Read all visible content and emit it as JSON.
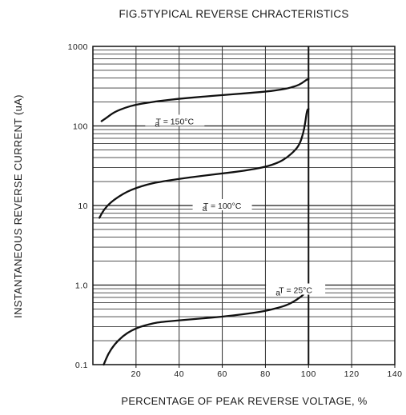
{
  "chart_data": {
    "type": "line",
    "title": "FIG.5TYPICAL REVERSE CHRACTERISTICS",
    "xlabel": "PERCENTAGE OF PEAK REVERSE VOLTAGE, %",
    "ylabel": "INSTANTANEOUS REVERSE CURRENT (uA)",
    "xlim": [
      0,
      140
    ],
    "ylim": [
      0.1,
      1000
    ],
    "yscale": "log",
    "grid": true,
    "x_ticks": [
      "20",
      "40",
      "60",
      "80",
      "100",
      "120",
      "140"
    ],
    "x_tick_values": [
      20,
      40,
      60,
      80,
      100,
      120,
      140
    ],
    "y_ticks": [
      "0.1",
      "1.0",
      "10",
      "100",
      "1000"
    ],
    "y_tick_values": [
      0.1,
      1,
      10,
      100,
      1000
    ],
    "series": [
      {
        "label": "Tₐ = 150°C",
        "label_text": "T  = 150°C",
        "label_sub": "a",
        "label_at": {
          "x": 38,
          "y": 115
        },
        "x": [
          4,
          6,
          10,
          15,
          20,
          25,
          30,
          40,
          50,
          60,
          70,
          80,
          85,
          90,
          94,
          97,
          99
        ],
        "y": [
          115,
          125,
          150,
          170,
          185,
          195,
          205,
          220,
          232,
          244,
          256,
          270,
          280,
          295,
          315,
          345,
          380
        ]
      },
      {
        "label": "Tₐ = 100°C",
        "label_text": "T  = 100°C",
        "label_sub": "a",
        "label_at": {
          "x": 60,
          "y": 10
        },
        "x": [
          3,
          5,
          8,
          12,
          16,
          20,
          25,
          30,
          40,
          50,
          60,
          70,
          80,
          86,
          90,
          94,
          96,
          97.5,
          98.5,
          99.3
        ],
        "y": [
          7,
          8.8,
          10.8,
          13,
          15,
          16.6,
          18.3,
          19.6,
          21.6,
          23.5,
          25.3,
          27.2,
          30.5,
          34.5,
          40,
          50,
          60,
          80,
          110,
          160
        ]
      },
      {
        "label": "Tₐ = 25°C",
        "label_text": "T  = 25°C",
        "label_sub": "a",
        "label_at": {
          "x": 94,
          "y": 0.87
        },
        "x": [
          5,
          7,
          10,
          14,
          18,
          22,
          26,
          30,
          40,
          50,
          60,
          70,
          80,
          86,
          90,
          94,
          96,
          97.5,
          98.5,
          99.2
        ],
        "y": [
          0.1,
          0.135,
          0.18,
          0.23,
          0.27,
          0.3,
          0.32,
          0.34,
          0.36,
          0.38,
          0.4,
          0.43,
          0.47,
          0.52,
          0.56,
          0.64,
          0.7,
          0.75,
          0.82,
          0.9
        ]
      }
    ],
    "vertical_rise": {
      "x": 100,
      "from": 0.1,
      "to": 1000
    }
  }
}
